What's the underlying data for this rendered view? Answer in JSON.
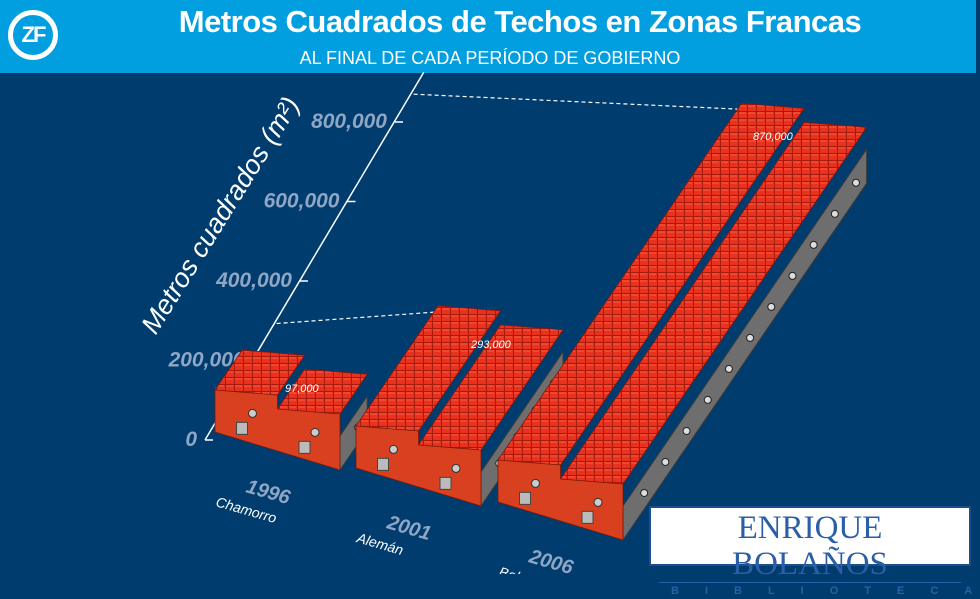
{
  "header": {
    "logo_text": "ZF",
    "title": "Metros Cuadrados de Techos en Zonas Francas",
    "subtitle": "AL FINAL DE CADA PERÍODO DE GOBIERNO"
  },
  "chart_data": {
    "type": "bar",
    "title": "Metros Cuadrados de Techos en Zonas Francas",
    "subtitle": "AL FINAL DE CADA PERÍODO DE GOBIERNO",
    "ylabel": "Metros cuadrados (m²)",
    "ylim": [
      0,
      870000
    ],
    "yticks": [
      "0",
      "200,000",
      "400,000",
      "600,000",
      "800,000"
    ],
    "ytick_values": [
      0,
      200000,
      400000,
      600000,
      800000
    ],
    "categories": [
      "1996",
      "2001",
      "2006"
    ],
    "category_sublabels": [
      "Chamorro",
      "Alemán",
      "Bolaños"
    ],
    "values": [
      97000,
      293000,
      870000
    ],
    "data_labels": [
      "97,000",
      "293,000",
      "870,000"
    ],
    "grid": false,
    "style": "3d-building-pictogram",
    "colors": {
      "roof": "#e8321e",
      "facade": "#d8401f",
      "wall": "#6e6e6e",
      "axis_labels": "#8fa6c4",
      "background": "#003c6e",
      "header": "#019ee0"
    }
  },
  "watermark": {
    "name": "ENRIQUE BOLAÑOS",
    "sub": "BIBLIOTECA"
  }
}
